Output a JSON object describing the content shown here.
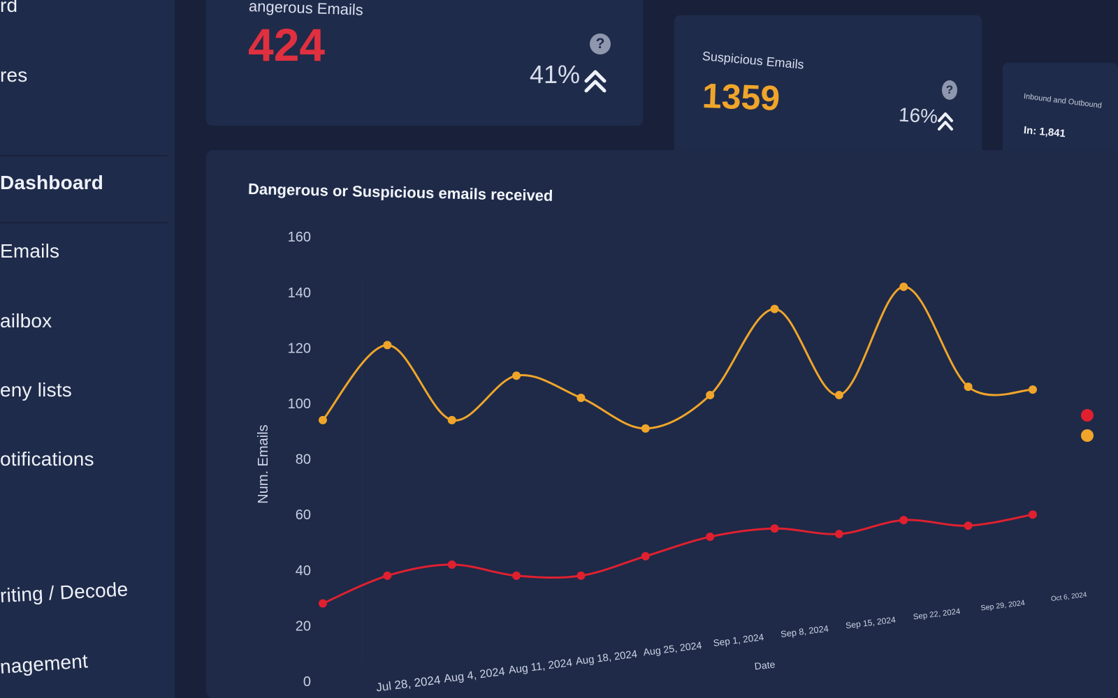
{
  "sidebar": {
    "items": [
      {
        "label": "rd"
      },
      {
        "label": "res"
      },
      {
        "label": "Dashboard"
      },
      {
        "label": "Emails"
      },
      {
        "label": "ailbox"
      },
      {
        "label": "eny lists"
      },
      {
        "label": "otifications"
      },
      {
        "label": "riting / Decode"
      },
      {
        "label": "nagement"
      }
    ]
  },
  "cards": {
    "dangerous": {
      "title": "angerous Emails",
      "value": "424",
      "change": "41%",
      "accent": "#e0303f"
    },
    "suspicious": {
      "title": "Suspicious Emails",
      "value": "1359",
      "change": "16%",
      "accent": "#f0a52a"
    },
    "third": {
      "title": "Inbound and Outbound",
      "value": "In: 1,841"
    }
  },
  "help_icon": {
    "glyph": "?"
  },
  "chart_data": {
    "type": "line",
    "title": "Dangerous or Suspicious emails received",
    "ylabel": "Num. Emails",
    "xlabel": "Date",
    "ylim": [
      0,
      160
    ],
    "yticks": [
      0,
      20,
      40,
      60,
      80,
      100,
      120,
      140,
      160
    ],
    "x_tick_labels": [
      "Jul 28, 2024",
      "Aug 4, 2024",
      "Aug 11, 2024",
      "Aug 18, 2024",
      "Aug 25, 2024",
      "Sep 1, 2024",
      "Sep 8, 2024",
      "Sep 15, 2024",
      "Sep 22, 2024",
      "Sep 29, 2024",
      "Oct 6, 2024"
    ],
    "grid": false,
    "series": [
      {
        "color": "#f0a52a",
        "values": [
          94,
          121,
          94,
          110,
          102,
          91,
          103,
          134,
          103,
          142,
          106,
          105
        ]
      },
      {
        "color": "#e0202f",
        "values": [
          28,
          38,
          42,
          38,
          38,
          45,
          52,
          55,
          53,
          58,
          56,
          60
        ]
      }
    ]
  }
}
